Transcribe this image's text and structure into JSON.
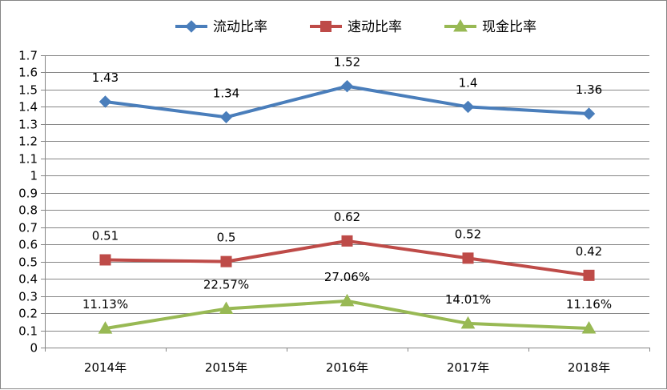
{
  "chart_data": {
    "type": "line",
    "title": "",
    "xlabel": "",
    "ylabel": "",
    "categories": [
      "2014年",
      "2015年",
      "2016年",
      "2017年",
      "2018年"
    ],
    "ylim": [
      0,
      1.7
    ],
    "ytick_step": 0.1,
    "yticks": [
      "0",
      "0.1",
      "0.2",
      "0.3",
      "0.4",
      "0.5",
      "0.6",
      "0.7",
      "0.8",
      "0.9",
      "1",
      "1.1",
      "1.2",
      "1.3",
      "1.4",
      "1.5",
      "1.6",
      "1.7"
    ],
    "grid": true,
    "legend_position": "top-center",
    "series": [
      {
        "name": "流动比率",
        "marker": "diamond",
        "color": "#4A7EBB",
        "values": [
          1.43,
          1.34,
          1.52,
          1.4,
          1.36
        ],
        "labels": [
          "1.43",
          "1.34",
          "1.52",
          "1.4",
          "1.36"
        ]
      },
      {
        "name": "速动比率",
        "marker": "square",
        "color": "#BE4B48",
        "values": [
          0.51,
          0.5,
          0.62,
          0.52,
          0.42
        ],
        "labels": [
          "0.51",
          "0.5",
          "0.62",
          "0.52",
          "0.42"
        ]
      },
      {
        "name": "现金比率",
        "marker": "triangle",
        "color": "#98B954",
        "values": [
          0.1113,
          0.2257,
          0.2706,
          0.1401,
          0.1116
        ],
        "labels": [
          "11.13%",
          "22.57%",
          "27.06%",
          "14.01%",
          "11.16%"
        ]
      }
    ]
  }
}
